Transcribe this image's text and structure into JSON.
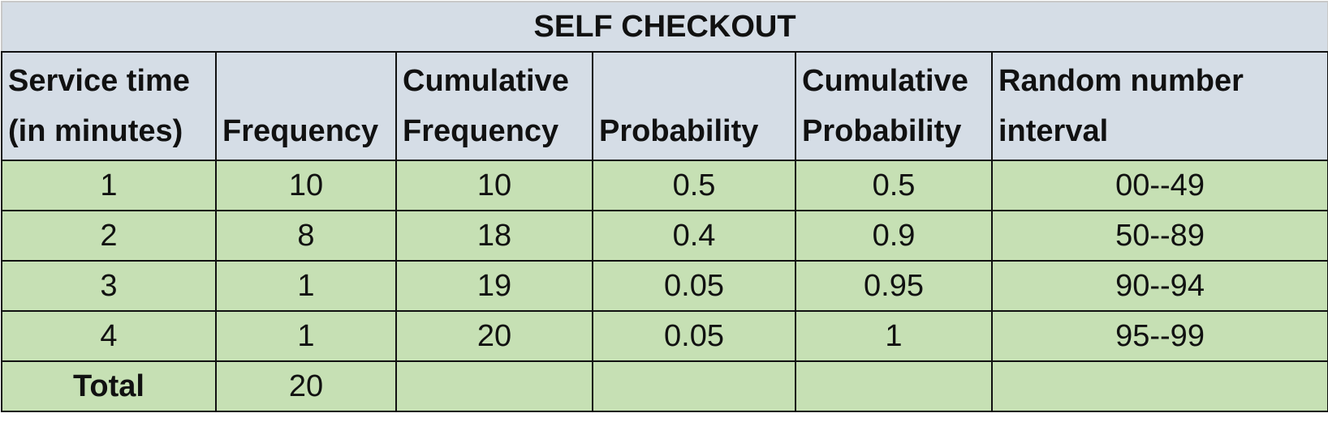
{
  "title": "SELF CHECKOUT",
  "headers": [
    [
      "Service time",
      "(in minutes)"
    ],
    [
      "",
      "Frequency"
    ],
    [
      "Cumulative",
      "Frequency"
    ],
    [
      "",
      "Probability"
    ],
    [
      "Cumulative",
      "Probability"
    ],
    [
      "Random number",
      "interval"
    ]
  ],
  "rows": [
    [
      "1",
      "10",
      "10",
      "0.5",
      "0.5",
      "00--49"
    ],
    [
      "2",
      "8",
      "18",
      "0.4",
      "0.9",
      "50--89"
    ],
    [
      "3",
      "1",
      "19",
      "0.05",
      "0.95",
      "90--94"
    ],
    [
      "4",
      "1",
      "20",
      "0.05",
      "1",
      "95--99"
    ]
  ],
  "total": {
    "label": "Total",
    "frequency": "20"
  },
  "colors": {
    "header_bg": "#d5dde6",
    "body_bg": "#c6e0b4",
    "border": "#111111"
  }
}
